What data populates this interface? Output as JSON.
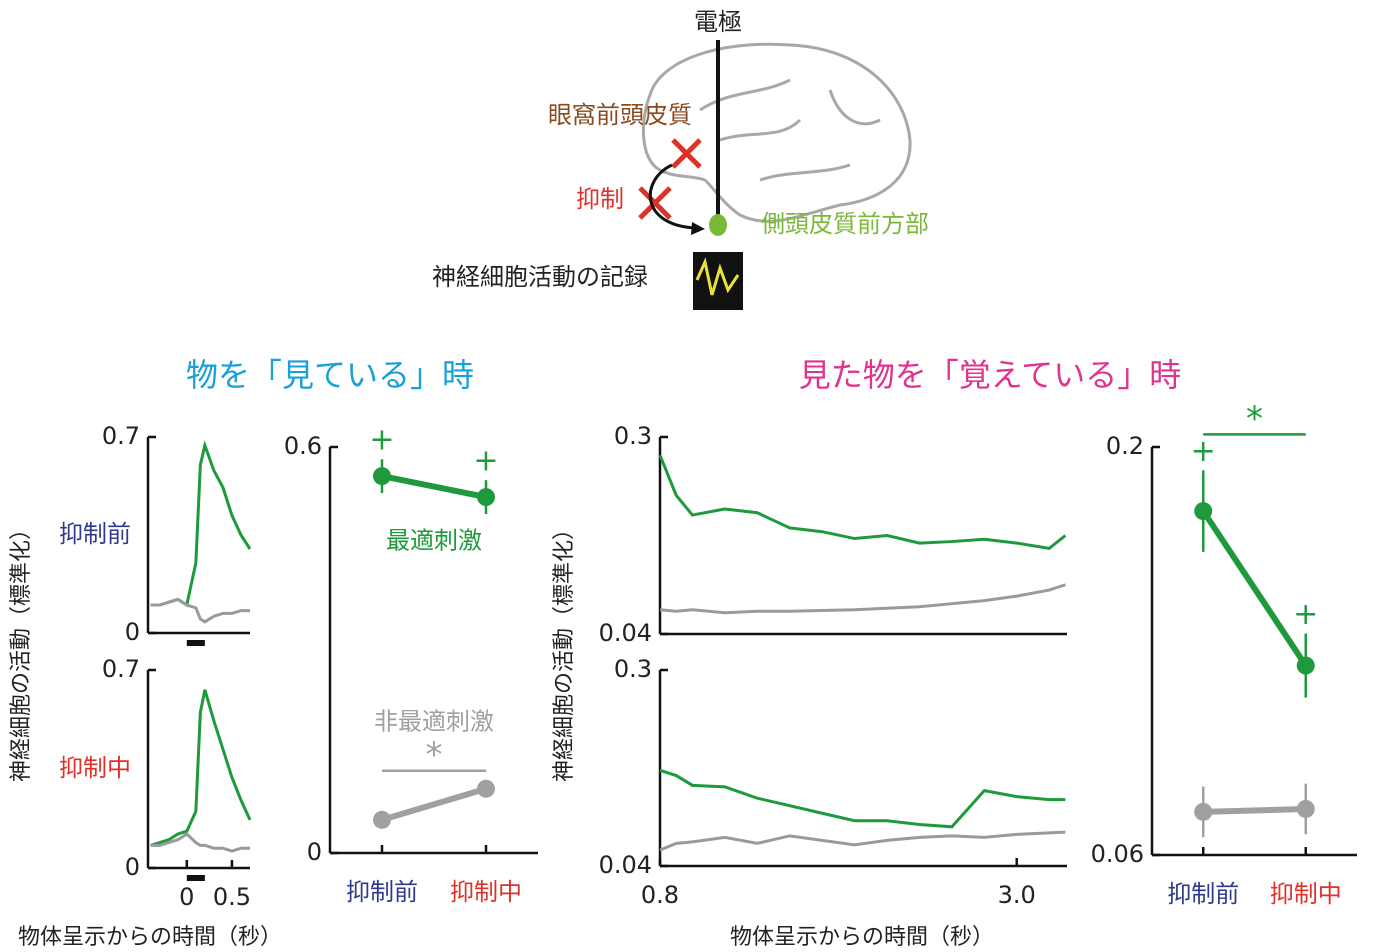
{
  "diagram": {
    "electrode": "電極",
    "ofc": "眼窩前頭皮質",
    "inhibition": "抑制",
    "ate": "側頭皮質前方部",
    "recording": "神経細胞活動の記録"
  },
  "sections": [
    {
      "title": "物を「見ている」時",
      "color": "#1aa0d8",
      "y_label": "神経細胞の活動（標準化）",
      "x_label": "物体呈示からの時間（秒）"
    },
    {
      "title": "見た物を「覚えている」時",
      "color": "#e0338f",
      "y_label": "神経細胞の活動（標準化）",
      "x_label": "物体呈示からの時間（秒）"
    }
  ],
  "chart_data": [
    {
      "type": "line",
      "label": "抑制前",
      "label_color": "#2e3a8c",
      "xlim": [
        -0.43,
        0.7
      ],
      "ylim": [
        0,
        0.7
      ],
      "yticks": [
        0,
        0.7
      ],
      "x": [
        -0.4,
        -0.3,
        -0.2,
        -0.1,
        0,
        0.1,
        0.15,
        0.2,
        0.3,
        0.4,
        0.5,
        0.6,
        0.7
      ],
      "series": [
        {
          "color": "#1e9a3c",
          "values": [
            0.1,
            0.1,
            0.11,
            0.12,
            0.1,
            0.25,
            0.6,
            0.67,
            0.58,
            0.52,
            0.42,
            0.35,
            0.3
          ]
        },
        {
          "color": "#9a9a9a",
          "values": [
            0.1,
            0.1,
            0.11,
            0.12,
            0.1,
            0.09,
            0.05,
            0.04,
            0.06,
            0.07,
            0.07,
            0.08,
            0.08
          ]
        }
      ]
    },
    {
      "type": "line",
      "label": "抑制中",
      "label_color": "#e0302a",
      "xlim": [
        -0.43,
        0.7
      ],
      "ylim": [
        0,
        0.7
      ],
      "yticks": [
        0,
        0.7
      ],
      "xticks": [
        0,
        0.5
      ],
      "x": [
        -0.4,
        -0.3,
        -0.2,
        -0.1,
        0,
        0.1,
        0.15,
        0.2,
        0.3,
        0.4,
        0.5,
        0.6,
        0.7
      ],
      "series": [
        {
          "color": "#1e9a3c",
          "values": [
            0.08,
            0.09,
            0.1,
            0.12,
            0.13,
            0.2,
            0.55,
            0.63,
            0.52,
            0.42,
            0.32,
            0.24,
            0.17
          ]
        },
        {
          "color": "#9a9a9a",
          "values": [
            0.08,
            0.08,
            0.09,
            0.1,
            0.12,
            0.09,
            0.08,
            0.08,
            0.07,
            0.07,
            0.06,
            0.07,
            0.07
          ]
        }
      ]
    },
    {
      "type": "point",
      "ylim": [
        0,
        0.6
      ],
      "yticks": [
        0,
        0.6
      ],
      "categories": [
        "抑制前",
        "抑制中"
      ],
      "category_colors": [
        "#2e3a8c",
        "#e0302a"
      ],
      "series": [
        {
          "name": "最適刺激",
          "color": "#1e9a3c",
          "values": [
            0.557,
            0.526
          ],
          "errors": [
            0.025,
            0.025
          ],
          "point_labels": [
            "+",
            "+"
          ]
        },
        {
          "name": "非最適刺激",
          "color": "#a0a0a0",
          "values": [
            0.049,
            0.095
          ],
          "significance": "*"
        }
      ]
    },
    {
      "type": "line",
      "xlim": [
        0.8,
        3.31
      ],
      "ylim": [
        0.04,
        0.3
      ],
      "yticks": [
        0.04,
        0.3
      ],
      "x": [
        0.8,
        0.9,
        1.0,
        1.2,
        1.4,
        1.6,
        1.8,
        2.0,
        2.2,
        2.4,
        2.6,
        2.8,
        3.0,
        3.2,
        3.3
      ],
      "series": [
        {
          "color": "#1e9a3c",
          "values": [
            0.276,
            0.223,
            0.197,
            0.205,
            0.2,
            0.18,
            0.175,
            0.166,
            0.17,
            0.16,
            0.162,
            0.165,
            0.16,
            0.153,
            0.17
          ]
        },
        {
          "color": "#9a9a9a",
          "values": [
            0.072,
            0.07,
            0.072,
            0.068,
            0.07,
            0.07,
            0.071,
            0.072,
            0.074,
            0.076,
            0.08,
            0.084,
            0.09,
            0.098,
            0.105
          ]
        }
      ]
    },
    {
      "type": "line",
      "xlim": [
        0.8,
        3.31
      ],
      "ylim": [
        0.04,
        0.3
      ],
      "yticks": [
        0.04,
        0.3
      ],
      "xticks": [
        0.8,
        {
          "value": 3,
          "label": "3.0"
        }
      ],
      "x": [
        0.8,
        0.9,
        1.0,
        1.2,
        1.4,
        1.6,
        1.8,
        2.0,
        2.2,
        2.4,
        2.6,
        2.8,
        3.0,
        3.2,
        3.3
      ],
      "series": [
        {
          "color": "#1e9a3c",
          "values": [
            0.167,
            0.16,
            0.147,
            0.145,
            0.13,
            0.12,
            0.11,
            0.1,
            0.1,
            0.095,
            0.092,
            0.14,
            0.132,
            0.128,
            0.128
          ]
        },
        {
          "color": "#9a9a9a",
          "values": [
            0.061,
            0.07,
            0.072,
            0.078,
            0.07,
            0.08,
            0.074,
            0.068,
            0.074,
            0.078,
            0.08,
            0.078,
            0.082,
            0.084,
            0.085
          ]
        }
      ]
    },
    {
      "type": "point",
      "ylim": [
        0.06,
        0.2
      ],
      "yticks": [
        0.06,
        0.2
      ],
      "categories": [
        "抑制前",
        "抑制中"
      ],
      "category_colors": [
        "#2e3a8c",
        "#e0302a"
      ],
      "series": [
        {
          "color": "#1e9a3c",
          "values": [
            0.178,
            0.125
          ],
          "errors": [
            0.014,
            0.011
          ],
          "point_labels": [
            "+",
            "+"
          ],
          "significance": "*"
        },
        {
          "color": "#a0a0a0",
          "values": [
            0.0748,
            0.0758
          ],
          "errors": [
            0.0087,
            0.0087
          ]
        }
      ]
    }
  ]
}
